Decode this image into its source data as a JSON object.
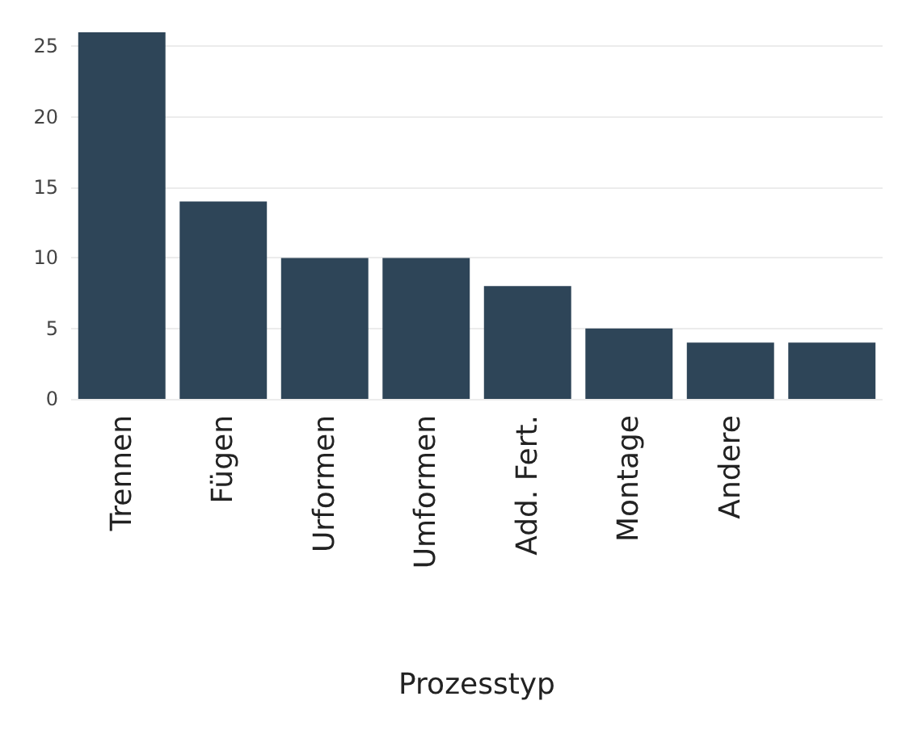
{
  "chart_data": {
    "type": "bar",
    "xlabel": "Prozesstyp",
    "categories": [
      "Trennen",
      "Fügen",
      "Urformen",
      "Umformen",
      "Add. Fert.",
      "Montage",
      "Andere",
      null
    ],
    "values": [
      26,
      14,
      10,
      10,
      8,
      5,
      4,
      4
    ],
    "color": "#2e4558",
    "ylim": [
      0,
      26
    ],
    "yticks": [
      0,
      5,
      10,
      15,
      20,
      25
    ],
    "grid": "y"
  }
}
